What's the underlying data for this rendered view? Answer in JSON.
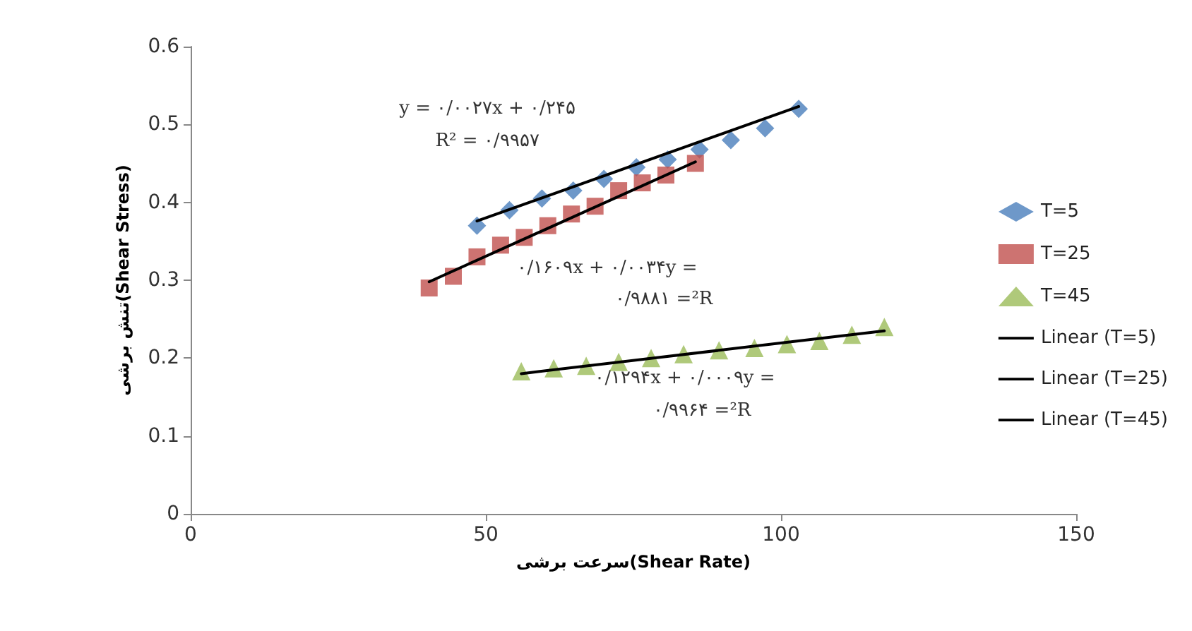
{
  "chart_data": {
    "type": "scatter",
    "xlabel": "سرعت برشی(Shear Rate)",
    "ylabel": "تنش برشی(Shear Stress)",
    "xlim": [
      0,
      150
    ],
    "xticks": [
      0,
      50,
      100,
      150
    ],
    "ylim": [
      0,
      0.6
    ],
    "yticks": [
      0,
      0.1,
      0.2,
      0.3,
      0.4,
      0.5,
      0.6
    ],
    "legend": "right",
    "series": [
      {
        "name": "T=5",
        "marker": "diamond",
        "color": "#4a7ebb",
        "x": [
          48.5,
          54,
          59.5,
          64.8,
          70,
          75.5,
          80.8,
          86.2,
          91.5,
          97.3,
          103
        ],
        "values": [
          0.37,
          0.39,
          0.405,
          0.415,
          0.43,
          0.445,
          0.455,
          0.468,
          0.48,
          0.495,
          0.52
        ]
      },
      {
        "name": "T=25",
        "marker": "square",
        "color": "#c0504d",
        "x": [
          40.4,
          44.5,
          48.5,
          52.5,
          56.5,
          60.5,
          64.5,
          68.5,
          72.5,
          76.5,
          80.5,
          85.5
        ],
        "values": [
          0.29,
          0.305,
          0.33,
          0.345,
          0.355,
          0.37,
          0.385,
          0.395,
          0.415,
          0.425,
          0.435,
          0.45
        ]
      },
      {
        "name": "T=45",
        "marker": "triangle",
        "color": "#9bbb59",
        "x": [
          56,
          61.5,
          67,
          72.5,
          78,
          83.5,
          89.5,
          95.5,
          101,
          106.5,
          112,
          117.5
        ],
        "values": [
          0.183,
          0.187,
          0.19,
          0.195,
          0.2,
          0.205,
          0.21,
          0.213,
          0.218,
          0.222,
          0.23,
          0.24
        ]
      },
      {
        "name": "Linear (T=5)",
        "type": "line",
        "marker": "none",
        "color": "#000000",
        "x": [
          48.5,
          103
        ],
        "values": [
          0.376,
          0.523
        ]
      },
      {
        "name": "Linear (T=25)",
        "type": "line",
        "marker": "none",
        "color": "#000000",
        "x": [
          40.4,
          85.5
        ],
        "values": [
          0.298,
          0.452
        ]
      },
      {
        "name": "Linear (T=45)",
        "type": "line",
        "marker": "none",
        "color": "#000000",
        "x": [
          56,
          117.5
        ],
        "values": [
          0.18,
          0.235
        ]
      }
    ],
    "annotations": [
      "y = ۰/۰۰۲۷x + ۰/۲۴۵",
      "R² = ۰/۹۹۵۷",
      "۰/۱۶۰۹x + ۰/۰۰۳۴y =",
      "۰/۹۸۸۱ =²R",
      "۰/۱۲۹۴x + ۰/۰۰۰۹y =",
      "۰/۹۹۶۴ =²R"
    ]
  }
}
